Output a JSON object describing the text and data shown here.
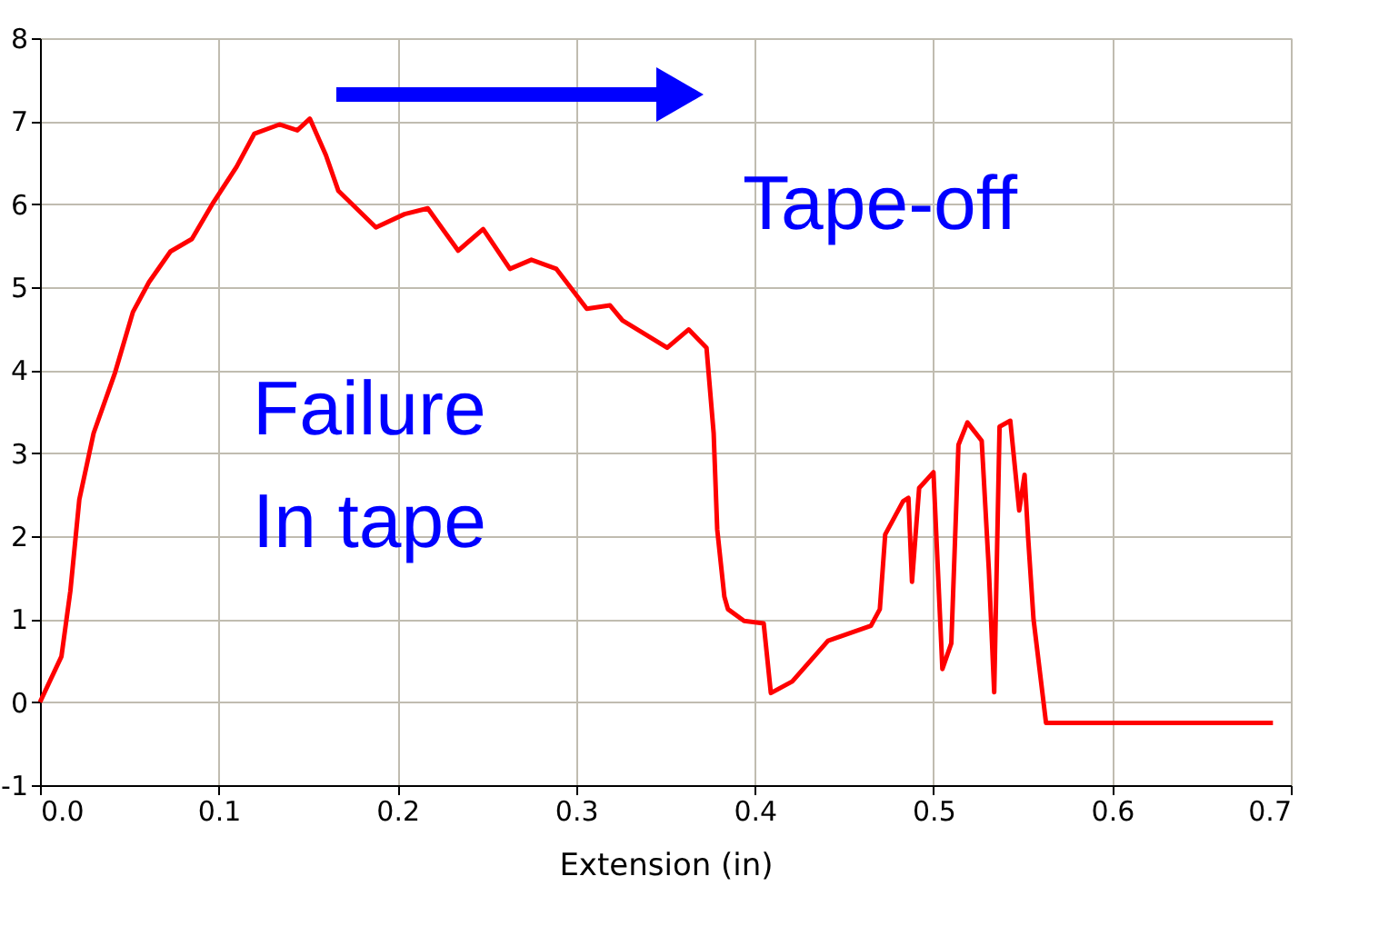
{
  "chart_data": {
    "type": "line",
    "xlabel": "Extension (in)",
    "x": [
      0,
      0.012,
      0.017,
      0.022,
      0.03,
      0.042,
      0.052,
      0.061,
      0.073,
      0.085,
      0.097,
      0.11,
      0.12,
      0.134,
      0.144,
      0.151,
      0.16,
      0.167,
      0.188,
      0.204,
      0.217,
      0.234,
      0.248,
      0.263,
      0.275,
      0.289,
      0.306,
      0.319,
      0.326,
      0.351,
      0.363,
      0.373,
      0.377,
      0.379,
      0.383,
      0.385,
      0.394,
      0.405,
      0.409,
      0.421,
      0.441,
      0.465,
      0.47,
      0.473,
      0.483,
      0.486,
      0.488,
      0.492,
      0.5,
      0.505,
      0.51,
      0.514,
      0.519,
      0.527,
      0.531,
      0.534,
      0.537,
      0.543,
      0.548,
      0.551,
      0.553,
      0.556,
      0.563,
      0.69
    ],
    "series": [
      {
        "color": "#ff0000",
        "values": [
          0,
          0.55,
          1.34,
          2.44,
          3.24,
          3.97,
          4.7,
          5.06,
          5.43,
          5.58,
          6.02,
          6.45,
          6.85,
          6.96,
          6.89,
          7.03,
          6.59,
          6.16,
          5.72,
          5.88,
          5.95,
          5.44,
          5.7,
          5.22,
          5.33,
          5.22,
          4.74,
          4.78,
          4.6,
          4.27,
          4.49,
          4.27,
          3.24,
          2.08,
          1.27,
          1.12,
          0.98,
          0.95,
          0.11,
          0.25,
          0.74,
          0.92,
          1.12,
          2.02,
          2.42,
          2.46,
          1.45,
          2.58,
          2.77,
          0.4,
          0.71,
          3.1,
          3.37,
          3.15,
          1.6,
          0.12,
          3.32,
          3.39,
          2.31,
          2.74,
          1.98,
          1.0,
          -0.25,
          -0.25
        ]
      }
    ],
    "xlim": [
      0,
      0.7
    ],
    "ylim": [
      -1,
      8
    ],
    "xticks": [
      {
        "value": 0,
        "label": "0.0"
      },
      0.1,
      0.2,
      0.3,
      0.4,
      0.5,
      0.6,
      0.7
    ],
    "yticks": [
      -1,
      0,
      1,
      2,
      3,
      4,
      5,
      6,
      7,
      8
    ],
    "grid": true,
    "marker": "none",
    "line_style": "solid",
    "annotations": [
      "Tape-off",
      "Failure\nIn tape"
    ]
  }
}
